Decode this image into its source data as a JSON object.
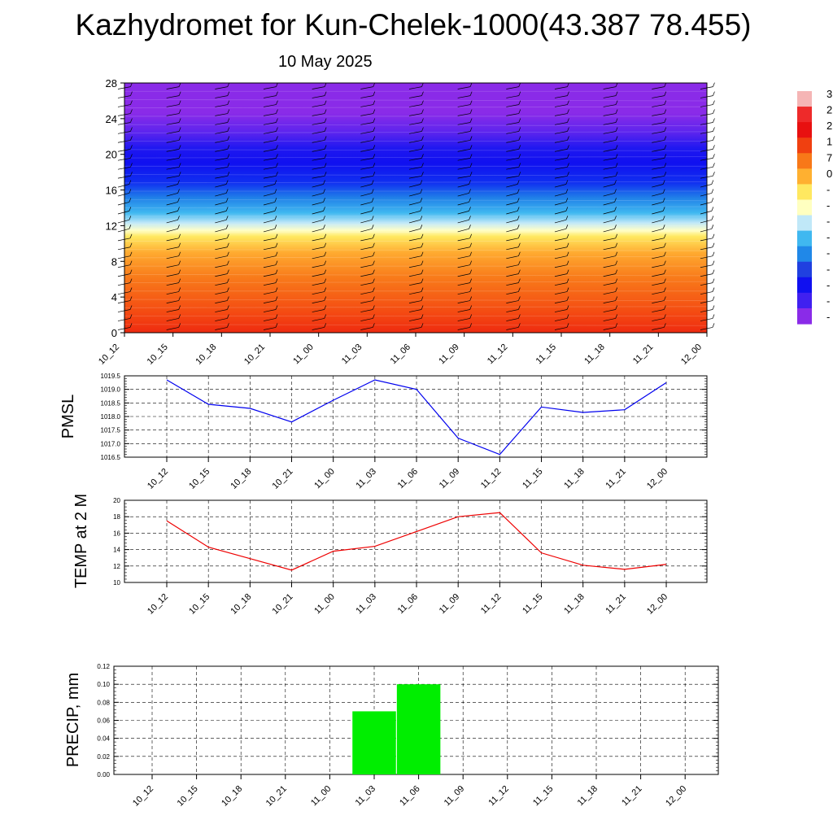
{
  "header": {
    "title": "Kazhydromet for Kun-Chelek-1000(43.387 78.455)",
    "subtitle": "10 May 2025"
  },
  "times": [
    "10_12",
    "10_15",
    "10_18",
    "10_21",
    "11_00",
    "11_03",
    "11_06",
    "11_09",
    "11_12",
    "11_15",
    "11_18",
    "11_21",
    "12_00"
  ],
  "colors": {
    "pressure_line": "#0000ee",
    "temperature_line": "#ee0000",
    "precip_bars": "#00ee00"
  },
  "chart_data": [
    {
      "type": "heatmap",
      "title": "",
      "xlabel": "",
      "ylabel": "",
      "x": [
        "10_12",
        "10_15",
        "10_18",
        "10_21",
        "11_00",
        "11_03",
        "11_06",
        "11_09",
        "11_12",
        "11_15",
        "11_18",
        "11_21",
        "12_00"
      ],
      "y_ticks": [
        0,
        4,
        8,
        12,
        16,
        20,
        24,
        28
      ],
      "ylim": [
        0,
        28
      ],
      "colorbar_labels": [
        "3",
        "2",
        "2",
        "1",
        "7",
        "0",
        "-",
        "-",
        "-",
        "-",
        "-",
        "-",
        "-",
        "-",
        "-"
      ],
      "colorbar_colors": [
        "#f5b5b5",
        "#ee2a2a",
        "#e81010",
        "#f04010",
        "#f87818",
        "#ffb030",
        "#ffe860",
        "#ffffc0",
        "#c0e8f8",
        "#40b8f0",
        "#2088e8",
        "#2040e0",
        "#1010f0",
        "#4020f0",
        "#8a2be8"
      ],
      "wind_barbs": true,
      "grid": false
    },
    {
      "type": "line",
      "title": "",
      "xlabel": "",
      "ylabel": "PMSL",
      "x": [
        "10_12",
        "10_15",
        "10_18",
        "10_21",
        "11_00",
        "11_03",
        "11_06",
        "11_09",
        "11_12",
        "11_15",
        "11_18",
        "11_21",
        "12_00"
      ],
      "series": [
        {
          "values": [
            1019.35,
            1018.45,
            1018.3,
            1017.8,
            1018.6,
            1019.35,
            1019.0,
            1017.2,
            1016.6,
            1018.35,
            1018.15,
            1018.25,
            1019.25
          ]
        }
      ],
      "ylim": [
        1016.5,
        1019.5
      ],
      "y_ticks": [
        "1016.5",
        "1017.0",
        "1017.5",
        "1018.0",
        "1018.5",
        "1019.0",
        "1019.5"
      ],
      "grid": true
    },
    {
      "type": "line",
      "title": "",
      "xlabel": "",
      "ylabel": "TEMP at 2 M",
      "x": [
        "10_12",
        "10_15",
        "10_18",
        "10_21",
        "11_00",
        "11_03",
        "11_06",
        "11_09",
        "11_12",
        "11_15",
        "11_18",
        "11_21",
        "12_00"
      ],
      "series": [
        {
          "values": [
            17.5,
            14.3,
            12.9,
            11.5,
            13.8,
            14.4,
            16.2,
            18.0,
            18.5,
            13.6,
            12.1,
            11.6,
            12.2
          ]
        }
      ],
      "ylim": [
        10,
        20
      ],
      "y_ticks": [
        "10",
        "12",
        "14",
        "16",
        "18",
        "20"
      ],
      "grid": true
    },
    {
      "type": "bar",
      "title": "",
      "xlabel": "",
      "ylabel": "PRECIP, mm",
      "categories": [
        "10_12",
        "10_15",
        "10_18",
        "10_21",
        "11_00",
        "11_03",
        "11_06",
        "11_09",
        "11_12",
        "11_15",
        "11_18",
        "11_21",
        "12_00"
      ],
      "values": [
        0,
        0,
        0,
        0,
        0,
        0.07,
        0.1,
        0,
        0,
        0,
        0,
        0,
        0
      ],
      "ylim": [
        0,
        0.12
      ],
      "y_ticks": [
        "0.00",
        "0.02",
        "0.04",
        "0.06",
        "0.08",
        "0.10",
        "0.12"
      ],
      "grid": true
    }
  ]
}
